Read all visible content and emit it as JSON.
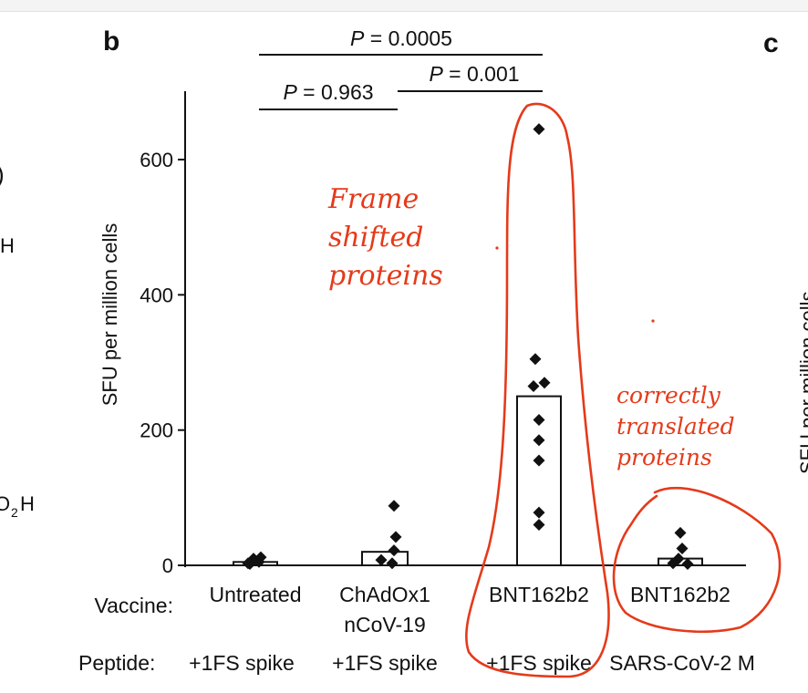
{
  "panel_labels": {
    "b": "b",
    "c": "c"
  },
  "left_fragments": {
    "paren": ")",
    "h1": "H",
    "co2h_o": "O",
    "co2h_sub": "2",
    "co2h_h": "H"
  },
  "right_fragment": "SFU per million cells",
  "row_labels": {
    "vaccine": "Vaccine:",
    "peptide": "Peptide:"
  },
  "chart_data": {
    "type": "bar",
    "ylabel": "SFU per million cells",
    "ylim": [
      0,
      690
    ],
    "yticks": [
      0,
      200,
      400,
      600
    ],
    "categories": [
      "Untreated",
      "ChAdOx1 nCoV-19",
      "BNT162b2",
      "BNT162b2"
    ],
    "vaccine_labels": [
      [
        "Untreated"
      ],
      [
        "ChAdOx1",
        "nCoV-19"
      ],
      [
        "BNT162b2"
      ],
      [
        "BNT162b2"
      ]
    ],
    "peptide_labels": [
      "+1FS spike",
      "+1FS spike",
      "+1FS spike",
      "SARS-CoV-2 M"
    ],
    "values": [
      5,
      20,
      250,
      10
    ],
    "points": [
      [
        2,
        5,
        10,
        12,
        3
      ],
      [
        88,
        42,
        22,
        8,
        3
      ],
      [
        645,
        305,
        270,
        265,
        215,
        185,
        155,
        78,
        60
      ],
      [
        48,
        25,
        10,
        3,
        2
      ]
    ],
    "comparisons": [
      {
        "label": "P = 0.963",
        "from": 0,
        "to": 1
      },
      {
        "label": "P = 0.001",
        "from": 1,
        "to": 2
      },
      {
        "label": "P = 0.0005",
        "from": 0,
        "to": 2
      }
    ],
    "annotations": [
      {
        "text": [
          "Frame",
          "shifted",
          "proteins"
        ],
        "color": "#e53a1a"
      },
      {
        "text": [
          "correctly",
          "translated",
          "proteins"
        ],
        "color": "#e53a1a"
      }
    ]
  }
}
